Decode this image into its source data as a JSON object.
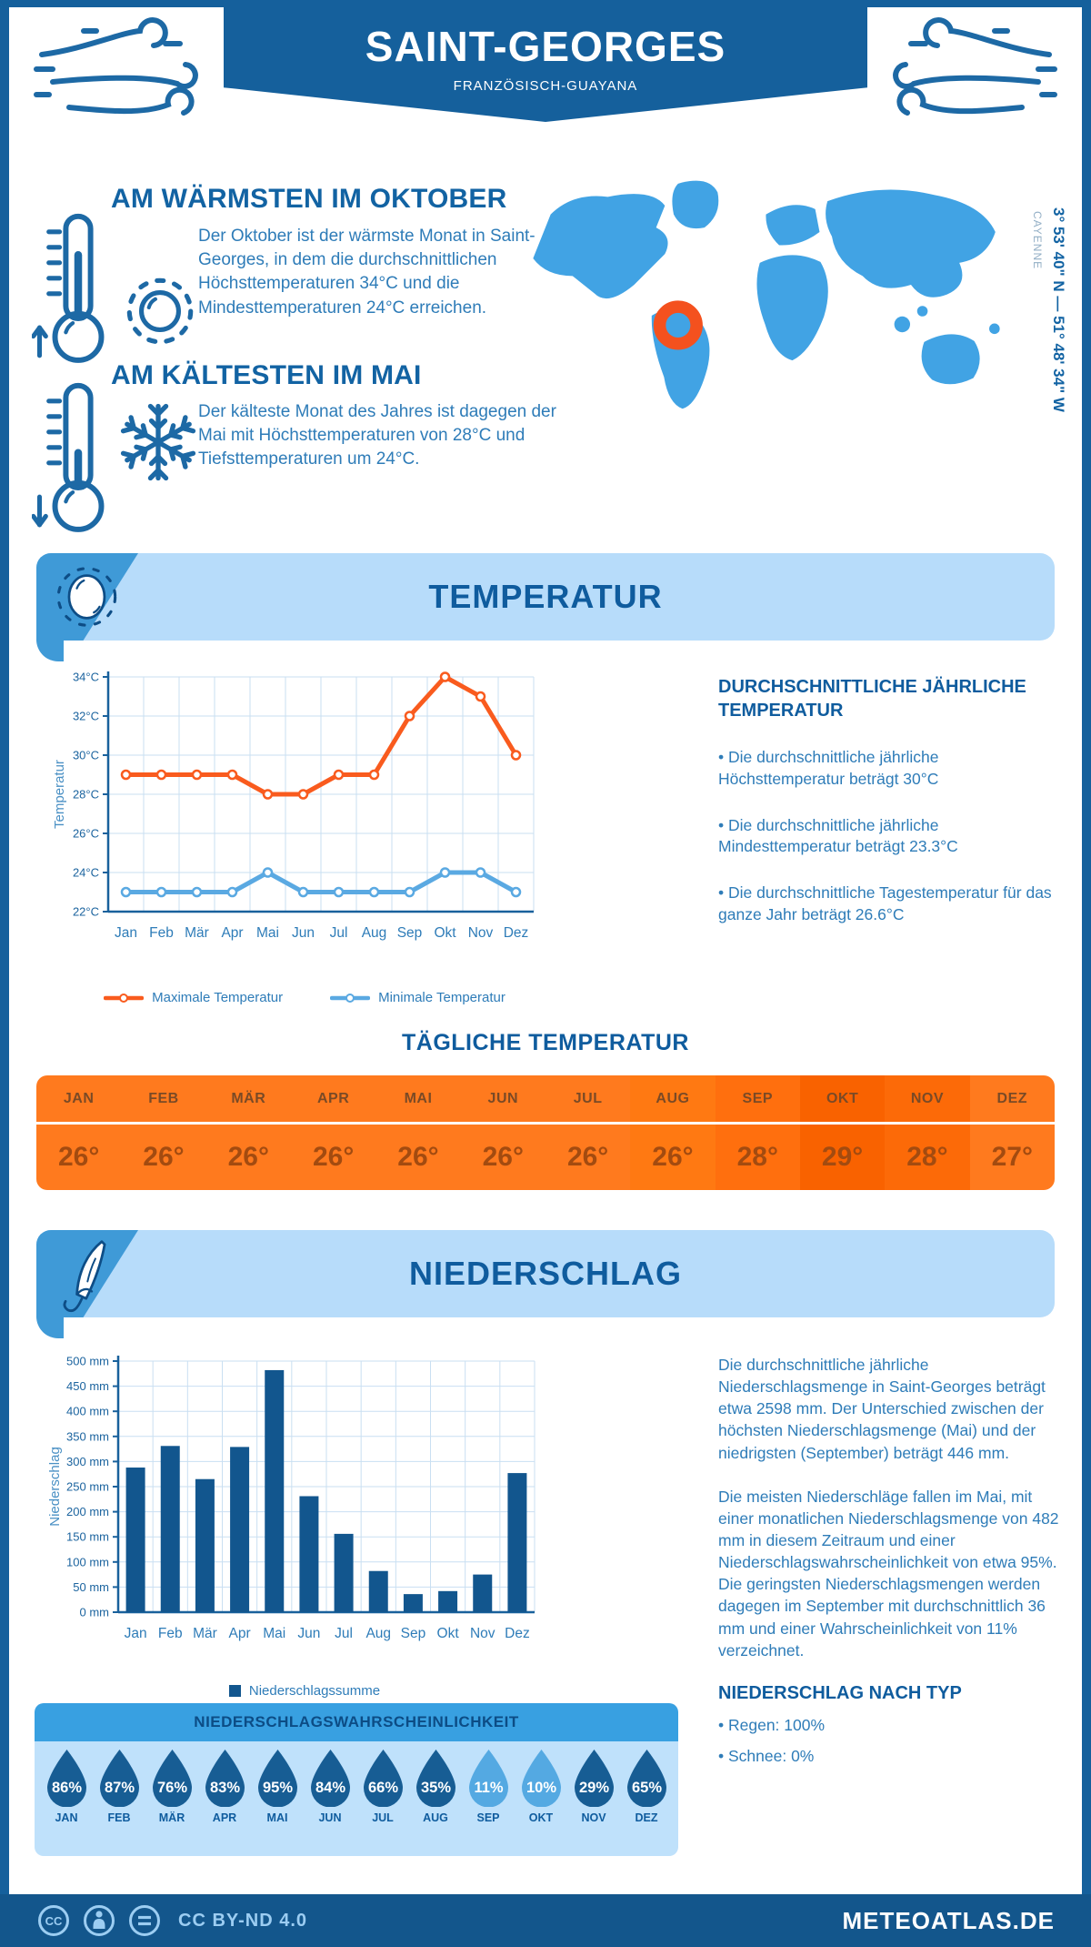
{
  "header": {
    "title": "SAINT-GEORGES",
    "subtitle": "FRANZÖSISCH-GUAYANA"
  },
  "highlights": [
    {
      "icon": "thermometer-up-icon",
      "secondary_icon": "sun-icon",
      "title": "AM WÄRMSTEN IM OKTOBER",
      "text": "Der Oktober ist der wärmste Monat in Saint-Georges, in dem die durchschnittlichen Höchsttemperaturen 34°C und die Mindesttemperaturen 24°C erreichen."
    },
    {
      "icon": "thermometer-down-icon",
      "secondary_icon": "snowflake-icon",
      "title": "AM KÄLTESTEN IM MAI",
      "text": "Der kälteste Monat des Jahres ist dagegen der Mai mit Höchsttemperaturen von 28°C und Tiefsttemperaturen um 24°C."
    }
  ],
  "map": {
    "marker_icon": "location-ring-icon",
    "marker_color": "#f4511e",
    "land_color": "#41a3e4",
    "coordinates": "3° 53' 40\" N — 51° 48' 34\" W",
    "city": "CAYENNE"
  },
  "temperature": {
    "banner": "TEMPERATUR",
    "summary_title": "DURCHSCHNITTLICHE JÄHRLICHE TEMPERATUR",
    "bullets": [
      "• Die durchschnittliche jährliche Höchsttemperatur beträgt 30°C",
      "• Die durchschnittliche jährliche Mindesttemperatur beträgt 23.3°C",
      "• Die durchschnittliche Tagestemperatur für das ganze Jahr beträgt 26.6°C"
    ]
  },
  "daily": {
    "title": "TÄGLICHE TEMPERATUR",
    "columns": [
      {
        "month": "JAN",
        "value": "26°",
        "bg": "#ff7a1e"
      },
      {
        "month": "FEB",
        "value": "26°",
        "bg": "#ff7a1e"
      },
      {
        "month": "MÄR",
        "value": "26°",
        "bg": "#ff7a1e"
      },
      {
        "month": "APR",
        "value": "26°",
        "bg": "#ff7a1e"
      },
      {
        "month": "MAI",
        "value": "26°",
        "bg": "#ff7a1e"
      },
      {
        "month": "JUN",
        "value": "26°",
        "bg": "#ff7a1e"
      },
      {
        "month": "JUL",
        "value": "26°",
        "bg": "#ff7a1e"
      },
      {
        "month": "AUG",
        "value": "26°",
        "bg": "#ff7912"
      },
      {
        "month": "SEP",
        "value": "28°",
        "bg": "#ff6f0e"
      },
      {
        "month": "OKT",
        "value": "29°",
        "bg": "#f96200"
      },
      {
        "month": "NOV",
        "value": "28°",
        "bg": "#fc6a08"
      },
      {
        "month": "DEZ",
        "value": "27°",
        "bg": "#ff7a1e"
      }
    ]
  },
  "precipitation": {
    "banner": "NIEDERSCHLAG",
    "paragraphs": [
      "Die durchschnittliche jährliche Niederschlagsmenge in Saint-Georges beträgt etwa 2598 mm. Der Unterschied zwischen der höchsten Niederschlagsmenge (Mai) und der niedrigsten (September) beträgt 446 mm.",
      "Die meisten Niederschläge fallen im Mai, mit einer monatlichen Niederschlagsmenge von 482 mm in diesem Zeitraum und einer Niederschlagswahrscheinlichkeit von etwa 95%. Die geringsten Niederschlagsmengen werden dagegen im September mit durchschnittlich 36 mm und einer Wahrscheinlichkeit von 11% verzeichnet."
    ],
    "type_title": "NIEDERSCHLAG NACH TYP",
    "type_bullets": [
      "• Regen: 100%",
      "• Schnee: 0%"
    ]
  },
  "probability": {
    "title": "NIEDERSCHLAGSWAHRSCHEINLICHKEIT",
    "drop_dark": "#175d94",
    "drop_light": "#54a9e2",
    "drops": [
      {
        "month": "JAN",
        "value": "86%",
        "shade": "dark"
      },
      {
        "month": "FEB",
        "value": "87%",
        "shade": "dark"
      },
      {
        "month": "MÄR",
        "value": "76%",
        "shade": "dark"
      },
      {
        "month": "APR",
        "value": "83%",
        "shade": "dark"
      },
      {
        "month": "MAI",
        "value": "95%",
        "shade": "dark"
      },
      {
        "month": "JUN",
        "value": "84%",
        "shade": "dark"
      },
      {
        "month": "JUL",
        "value": "66%",
        "shade": "dark"
      },
      {
        "month": "AUG",
        "value": "35%",
        "shade": "dark"
      },
      {
        "month": "SEP",
        "value": "11%",
        "shade": "light"
      },
      {
        "month": "OKT",
        "value": "10%",
        "shade": "light"
      },
      {
        "month": "NOV",
        "value": "29%",
        "shade": "dark"
      },
      {
        "month": "DEZ",
        "value": "65%",
        "shade": "dark"
      }
    ]
  },
  "footer": {
    "license": "CC BY-ND 4.0",
    "license_icons": [
      "cc-icon",
      "attribution-icon",
      "no-derivatives-icon"
    ],
    "site": "METEOATLAS.DE"
  },
  "chart_data": [
    {
      "type": "line",
      "categories": [
        "Jan",
        "Feb",
        "Mär",
        "Apr",
        "Mai",
        "Jun",
        "Jul",
        "Aug",
        "Sep",
        "Okt",
        "Nov",
        "Dez"
      ],
      "series": [
        {
          "name": "Maximale Temperatur",
          "color": "#f95b1e",
          "values": [
            29,
            29,
            29,
            29,
            28,
            28,
            29,
            29,
            32,
            34,
            33,
            30
          ]
        },
        {
          "name": "Minimale Temperatur",
          "color": "#5aa9e2",
          "values": [
            23,
            23,
            23,
            23,
            24,
            23,
            23,
            23,
            23,
            24,
            24,
            23
          ]
        }
      ],
      "ylabel": "Temperatur",
      "ylim": [
        22,
        34
      ],
      "ystep": 2,
      "ytick_suffix": "°C",
      "grid": true,
      "legend_position": "bottom"
    },
    {
      "type": "bar",
      "categories": [
        "Jan",
        "Feb",
        "Mär",
        "Apr",
        "Mai",
        "Jun",
        "Jul",
        "Aug",
        "Sep",
        "Okt",
        "Nov",
        "Dez"
      ],
      "series": [
        {
          "name": "Niederschlagssumme",
          "color": "#12568e",
          "values": [
            288,
            331,
            265,
            329,
            482,
            231,
            156,
            82,
            36,
            42,
            75,
            277
          ]
        }
      ],
      "ylabel": "Niederschlag",
      "ylim": [
        0,
        500
      ],
      "ystep": 50,
      "ytick_suffix": " mm",
      "grid": true,
      "legend_position": "bottom"
    }
  ]
}
